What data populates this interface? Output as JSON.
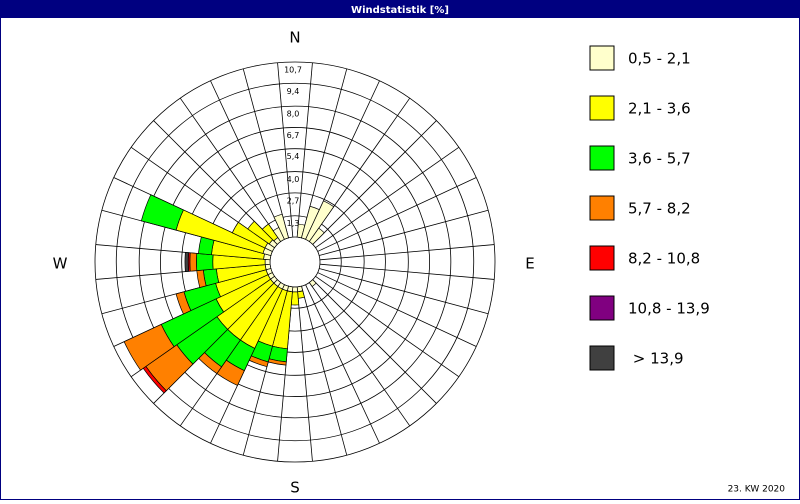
{
  "chart_data": {
    "type": "windrose",
    "title": "Windstatistik [%]",
    "footer": "23. KW 2020",
    "direction_labels": [
      "N",
      "E",
      "S",
      "W"
    ],
    "x": [
      0,
      10,
      20,
      30,
      40,
      50,
      60,
      70,
      80,
      90,
      100,
      110,
      120,
      130,
      140,
      150,
      160,
      170,
      180,
      190,
      200,
      210,
      220,
      230,
      240,
      250,
      260,
      270,
      280,
      290,
      300,
      310,
      320,
      330,
      340,
      350
    ],
    "ylim": [
      0,
      10.7
    ],
    "yticks": [
      {
        "value": 1.3,
        "label": "1,3"
      },
      {
        "value": 2.7,
        "label": "2,7"
      },
      {
        "value": 4.0,
        "label": "4,0"
      },
      {
        "value": 5.4,
        "label": "5,4"
      },
      {
        "value": 6.7,
        "label": "6,7"
      },
      {
        "value": 8.0,
        "label": "8,0"
      },
      {
        "value": 9.4,
        "label": "9,4"
      },
      {
        "value": 10.7,
        "label": "10,7"
      }
    ],
    "grid": true,
    "series": [
      {
        "name": "0,5 - 2,1",
        "color": "#ffffcc",
        "values": [
          0,
          0.8,
          2.0,
          2.6,
          1.0,
          0,
          0,
          0,
          0,
          0,
          0,
          0,
          0,
          0,
          0.3,
          0,
          0,
          0.3,
          0.3,
          0.3,
          0.3,
          0.3,
          0.3,
          0.3,
          0.3,
          0.3,
          0.3,
          0.3,
          0.4,
          0.5,
          0.5,
          0.4,
          0.3,
          0.8,
          1.5,
          0
        ]
      },
      {
        "name": "2,1 - 3,6",
        "color": "#ffff00",
        "values": [
          0,
          0,
          0,
          0,
          0,
          0,
          0,
          0,
          0,
          0,
          0,
          0,
          0,
          0,
          0,
          0,
          0,
          0.4,
          0.8,
          3.5,
          3.5,
          4.0,
          4.0,
          4.0,
          3.5,
          3.2,
          3.0,
          3.2,
          3.2,
          5.5,
          2.2,
          1.6,
          1.0,
          0,
          0,
          0
        ]
      },
      {
        "name": "3,6 - 5,7",
        "color": "#00ff00",
        "values": [
          0,
          0,
          0,
          0,
          0,
          0,
          0,
          0,
          0,
          0,
          0,
          0,
          0,
          0,
          0,
          0,
          0,
          0,
          0,
          0.8,
          1.0,
          1.5,
          2.0,
          3.0,
          3.7,
          2.0,
          0.8,
          1.0,
          0.8,
          2.2,
          0,
          0,
          0,
          0,
          0,
          0
        ]
      },
      {
        "name": "5,7 - 8,2",
        "color": "#ff8000",
        "values": [
          0,
          0,
          0,
          0,
          0,
          0,
          0,
          0,
          0,
          0,
          0,
          0,
          0,
          0,
          0,
          0,
          0,
          0,
          0,
          0.2,
          0.3,
          1.0,
          0.5,
          2.3,
          2.5,
          0.5,
          0.4,
          0.4,
          0,
          0,
          0,
          0,
          0,
          0,
          0,
          0
        ]
      },
      {
        "name": "8,2 - 10,8",
        "color": "#ff0000",
        "values": [
          0,
          0,
          0,
          0,
          0,
          0,
          0,
          0,
          0,
          0,
          0,
          0,
          0,
          0,
          0,
          0,
          0,
          0,
          0,
          0,
          0,
          0,
          0,
          0.2,
          0,
          0,
          0,
          0.1,
          0,
          0,
          0,
          0,
          0,
          0,
          0,
          0
        ]
      },
      {
        "name": "10,8 - 13,9",
        "color": "#800080",
        "values": [
          0,
          0,
          0,
          0,
          0,
          0,
          0,
          0,
          0,
          0,
          0,
          0,
          0,
          0,
          0,
          0,
          0,
          0,
          0,
          0,
          0,
          0,
          0,
          0,
          0,
          0,
          0,
          0,
          0,
          0,
          0,
          0,
          0,
          0,
          0,
          0
        ]
      },
      {
        "name": " > 13,9",
        "color": "#404040",
        "values": [
          0,
          0,
          0,
          0,
          0,
          0,
          0,
          0,
          0,
          0,
          0,
          0,
          0,
          0,
          0,
          0,
          0,
          0,
          0,
          0,
          0,
          0,
          0,
          0,
          0,
          0,
          0,
          0.2,
          0,
          0,
          0,
          0,
          0,
          0,
          0,
          0
        ]
      }
    ]
  }
}
